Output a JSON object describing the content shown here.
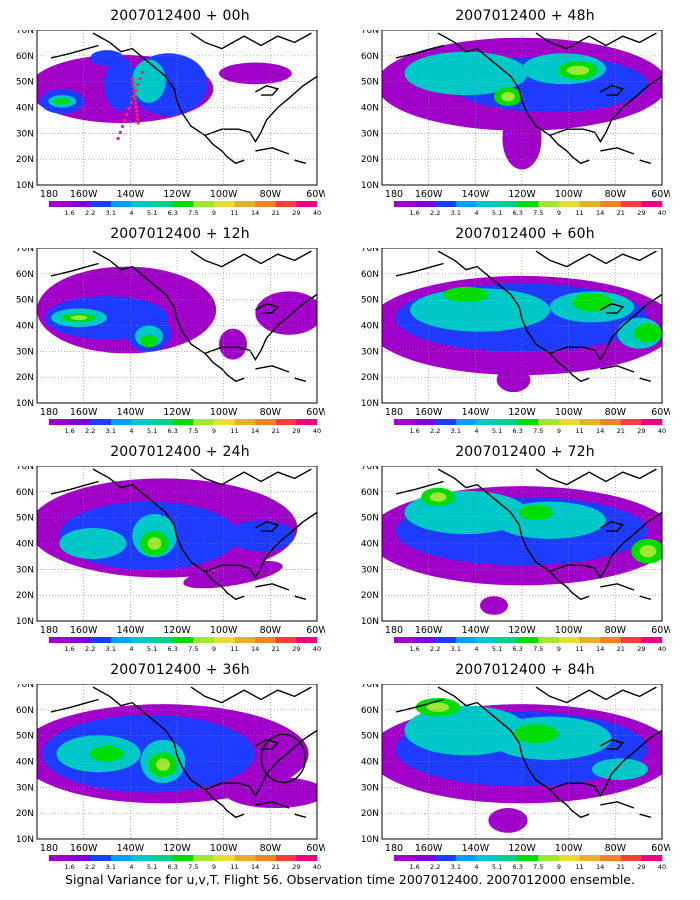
{
  "panels": [
    {
      "title": "2007012400 + 00h"
    },
    {
      "title": "2007012400 + 48h"
    },
    {
      "title": "2007012400 + 12h"
    },
    {
      "title": "2007012400 + 60h"
    },
    {
      "title": "2007012400 + 24h"
    },
    {
      "title": "2007012400 + 72h"
    },
    {
      "title": "2007012400 + 36h"
    },
    {
      "title": "2007012400 + 84h"
    }
  ],
  "lat_labels": [
    "70N",
    "60N",
    "50N",
    "40N",
    "30N",
    "20N",
    "10N"
  ],
  "lon_labels": [
    "180",
    "160W",
    "140W",
    "120W",
    "100W",
    "80W",
    "60W"
  ],
  "colorbar": {
    "labels": [
      "1.6",
      "2.2",
      "3.1",
      "4",
      "5.1",
      "6.3",
      "7.5",
      "9",
      "11",
      "14",
      "21",
      "29",
      "40"
    ],
    "colors": [
      "#a000c8",
      "#8200dc",
      "#1e3cff",
      "#00a0ff",
      "#00c8c8",
      "#00d28c",
      "#00dc00",
      "#a0e632",
      "#e6dc32",
      "#e6af2d",
      "#f08228",
      "#fa3c3c",
      "#f00082"
    ]
  },
  "footer": "Signal Variance for u,v,T. Flight 56. Observation time 2007012400. 2007012000 ensemble."
}
